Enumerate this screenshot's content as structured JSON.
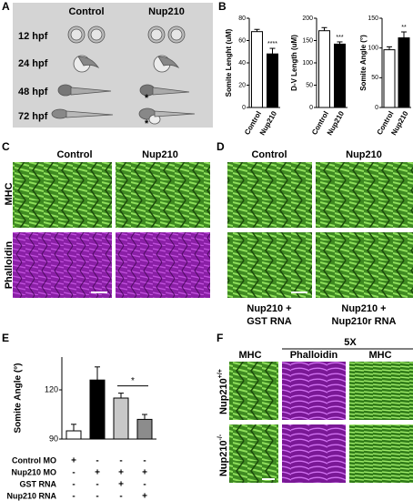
{
  "chart_data": [
    {
      "type": "bar",
      "y_label": "Somite Lenght (uM)",
      "categories": [
        "Control",
        "Nup210"
      ],
      "values": [
        68,
        48
      ],
      "errors": [
        2,
        5
      ],
      "colors": [
        "#ffffff",
        "#000000"
      ],
      "ylim": [
        0,
        80
      ],
      "yticks": [
        0,
        20,
        40,
        60,
        80
      ],
      "annotation": "****"
    },
    {
      "type": "bar",
      "y_label": "D-V Length (uM)",
      "categories": [
        "Control",
        "Nup210"
      ],
      "values": [
        172,
        142
      ],
      "errors": [
        7,
        5
      ],
      "colors": [
        "#ffffff",
        "#000000"
      ],
      "ylim": [
        0,
        200
      ],
      "yticks": [
        0,
        50,
        100,
        150,
        200
      ],
      "annotation": "***"
    },
    {
      "type": "bar",
      "y_label": "Somite Angle (°)",
      "categories": [
        "Control",
        "Nup210"
      ],
      "values": [
        97,
        117
      ],
      "errors": [
        5,
        10
      ],
      "colors": [
        "#ffffff",
        "#000000"
      ],
      "ylim": [
        0,
        150
      ],
      "yticks": [
        0,
        50,
        100,
        150
      ],
      "annotation": "**"
    },
    {
      "type": "bar",
      "y_label": "Somite Angle (°)",
      "values": [
        95,
        126,
        115,
        102
      ],
      "errors": [
        4,
        8,
        3,
        3
      ],
      "colors": [
        "#ffffff",
        "#000000",
        "#c8c8c8",
        "#8c8c8c"
      ],
      "ylim": [
        90,
        140
      ],
      "yticks": [
        90,
        120
      ],
      "annotation": "*",
      "conditions": [
        {
          "name": "Control MO",
          "signs": [
            "+",
            "-",
            "-",
            "-"
          ]
        },
        {
          "name": "Nup210 MO",
          "signs": [
            "-",
            "+",
            "+",
            "+"
          ]
        },
        {
          "name": "GST RNA",
          "signs": [
            "-",
            "-",
            "+",
            "-"
          ]
        },
        {
          "name": "Nup210 RNA",
          "signs": [
            "-",
            "-",
            "-",
            "+"
          ]
        }
      ]
    }
  ],
  "figure": {
    "panel_labels": [
      "A",
      "B",
      "C",
      "D",
      "E",
      "F"
    ],
    "panel_a": {
      "columns": [
        "Control",
        "Nup210"
      ],
      "rows": [
        "12 hpf",
        "24 hpf",
        "48 hpf",
        "72 hpf"
      ],
      "asterisks": [
        "*",
        "*"
      ]
    },
    "panel_c": {
      "columns": [
        "Control",
        "Nup210"
      ],
      "rows": [
        "MHC",
        "Phalloidin"
      ]
    },
    "panel_d": {
      "columns": [
        "Control",
        "Nup210"
      ],
      "captions": [
        [
          "Nup210 +",
          "GST RNA"
        ],
        [
          "Nup210 +",
          "Nup210r RNA"
        ]
      ]
    },
    "panel_f": {
      "group": "5X",
      "columns": [
        "MHC",
        "Phalloidin",
        "MHC"
      ],
      "rows": [
        {
          "base": "Nup210",
          "sup": "+/+"
        },
        {
          "base": "Nup210",
          "sup": "-/-"
        }
      ]
    }
  }
}
